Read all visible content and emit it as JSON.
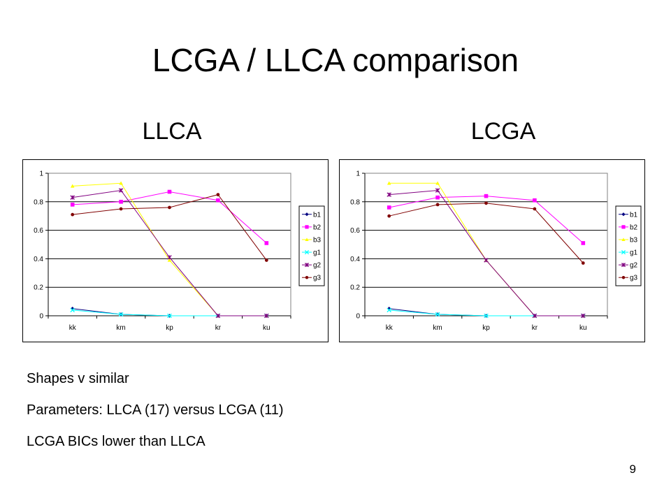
{
  "slide": {
    "title": "LCGA / LLCA comparison",
    "left_heading": "LLCA",
    "right_heading": "LCGA",
    "bullets": [
      "Shapes v similar",
      "Parameters: LLCA (17) versus LCGA (11)",
      "LCGA BICs lower than LLCA"
    ],
    "page_number": "9"
  },
  "chart_data": [
    {
      "type": "line",
      "categories": [
        "kk",
        "km",
        "kp",
        "kr",
        "ku"
      ],
      "ylim": [
        0,
        1
      ],
      "yticks": [
        "0",
        "0.2",
        "0.4",
        "0.6",
        "0.8",
        "1"
      ],
      "grid": true,
      "legend_position": "right",
      "series": [
        {
          "name": "b1",
          "color": "#000080",
          "marker": "diamond",
          "values": [
            0.05,
            0.01,
            0.0,
            0.0,
            0.0
          ]
        },
        {
          "name": "b2",
          "color": "#FF00FF",
          "marker": "square",
          "values": [
            0.78,
            0.8,
            0.87,
            0.81,
            0.51
          ]
        },
        {
          "name": "b3",
          "color": "#FFFF00",
          "marker": "triangle",
          "values": [
            0.91,
            0.93,
            0.39,
            0.0,
            0.0
          ]
        },
        {
          "name": "g1",
          "color": "#00FFFF",
          "marker": "x",
          "values": [
            0.04,
            0.01,
            0.0,
            0.0,
            0.0
          ]
        },
        {
          "name": "g2",
          "color": "#800080",
          "marker": "star",
          "values": [
            0.83,
            0.88,
            0.41,
            0.0,
            0.0
          ]
        },
        {
          "name": "g3",
          "color": "#800000",
          "marker": "circle",
          "values": [
            0.71,
            0.75,
            0.76,
            0.85,
            0.39
          ]
        }
      ]
    },
    {
      "type": "line",
      "categories": [
        "kk",
        "km",
        "kp",
        "kr",
        "ku"
      ],
      "ylim": [
        0,
        1
      ],
      "yticks": [
        "0",
        "0.2",
        "0.4",
        "0.6",
        "0.8",
        "1"
      ],
      "grid": true,
      "legend_position": "right",
      "series": [
        {
          "name": "b1",
          "color": "#000080",
          "marker": "diamond",
          "values": [
            0.05,
            0.01,
            0.0,
            0.0,
            0.0
          ]
        },
        {
          "name": "b2",
          "color": "#FF00FF",
          "marker": "square",
          "values": [
            0.76,
            0.83,
            0.84,
            0.81,
            0.51
          ]
        },
        {
          "name": "b3",
          "color": "#FFFF00",
          "marker": "triangle",
          "values": [
            0.93,
            0.93,
            0.39,
            0.0,
            0.0
          ]
        },
        {
          "name": "g1",
          "color": "#00FFFF",
          "marker": "x",
          "values": [
            0.04,
            0.01,
            0.0,
            0.0,
            0.0
          ]
        },
        {
          "name": "g2",
          "color": "#800080",
          "marker": "star",
          "values": [
            0.85,
            0.88,
            0.39,
            0.0,
            0.0
          ]
        },
        {
          "name": "g3",
          "color": "#800000",
          "marker": "circle",
          "values": [
            0.7,
            0.78,
            0.79,
            0.75,
            0.37
          ]
        }
      ]
    }
  ]
}
